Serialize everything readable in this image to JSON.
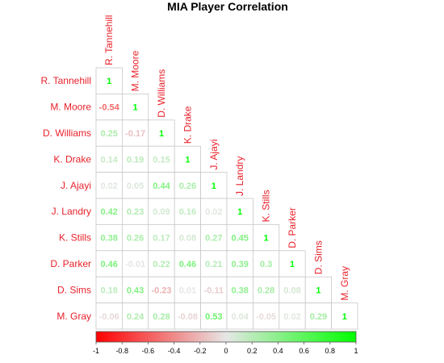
{
  "chart_data": {
    "type": "heatmap",
    "title": "MIA Player Correlation",
    "labels": [
      "R. Tannehill",
      "M. Moore",
      "D. Williams",
      "K. Drake",
      "J. Ajayi",
      "J. Landry",
      "K. Stills",
      "D. Parker",
      "D. Sims",
      "M. Gray"
    ],
    "matrix": [
      [
        1
      ],
      [
        -0.54,
        1
      ],
      [
        0.25,
        -0.17,
        1
      ],
      [
        0.14,
        0.19,
        0.15,
        1
      ],
      [
        0.02,
        0.05,
        0.44,
        0.26,
        1
      ],
      [
        0.42,
        0.23,
        0.09,
        0.16,
        0.02,
        1
      ],
      [
        0.38,
        0.26,
        0.17,
        0.08,
        0.27,
        0.45,
        1
      ],
      [
        0.46,
        -0.01,
        0.22,
        0.46,
        0.21,
        0.39,
        0.3,
        1
      ],
      [
        0.18,
        0.43,
        -0.23,
        0.01,
        -0.11,
        0.38,
        0.28,
        0.08,
        1
      ],
      [
        -0.06,
        0.24,
        0.28,
        -0.08,
        0.53,
        0.04,
        -0.05,
        0.02,
        0.29,
        1
      ]
    ],
    "color_scale": {
      "min": -1,
      "max": 1,
      "low_color": "#ff0000",
      "mid_color": "#e6e6e6",
      "high_color": "#00ff00",
      "ticks": [
        "-1",
        "-0.8",
        "-0.6",
        "-0.4",
        "-0.2",
        "0",
        "0.2",
        "0.4",
        "0.6",
        "0.8",
        "1"
      ]
    },
    "label_color": "#e8212a"
  }
}
